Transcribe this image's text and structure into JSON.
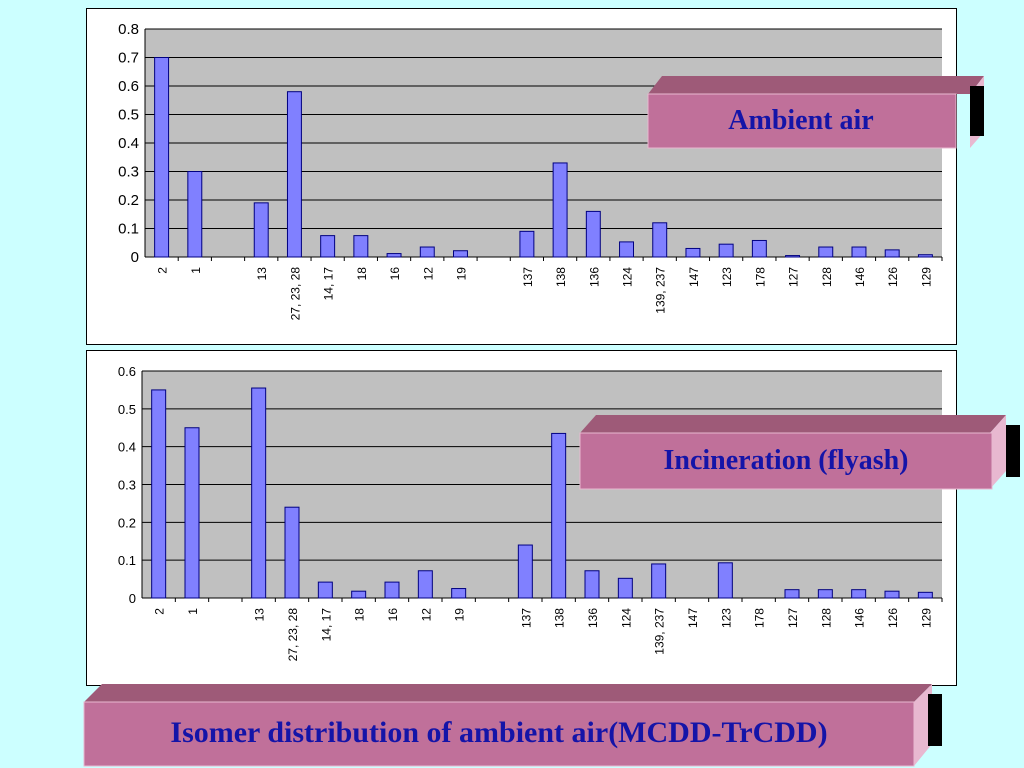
{
  "colors": {
    "background": "#ccffff",
    "plot_area": "#c0c0c0",
    "bar_fill": "#8080ff",
    "bar_stroke": "#000080",
    "label_box_front": "#c0709a",
    "label_box_top": "#9e5a78",
    "label_text": "#1414a8"
  },
  "labels": {
    "ambient": "Ambient air",
    "incineration": "Incineration (flyash)",
    "title": "Isomer distribution of ambient air(MCDD-TrCDD)"
  },
  "chart_data": [
    {
      "type": "bar",
      "categories": [
        "2",
        "1",
        "",
        "13",
        "27, 23, 28",
        "14, 17",
        "18",
        "16",
        "12",
        "19",
        "",
        "137",
        "138",
        "136",
        "124",
        "139, 237",
        "147",
        "123",
        "178",
        "127",
        "128",
        "146",
        "126",
        "129"
      ],
      "values": [
        0.7,
        0.3,
        null,
        0.19,
        0.58,
        0.075,
        0.075,
        0.012,
        0.035,
        0.022,
        null,
        0.09,
        0.33,
        0.16,
        0.053,
        0.12,
        0.03,
        0.045,
        0.058,
        0.005,
        0.035,
        0.035,
        0.025,
        0.008
      ],
      "ylim": [
        0,
        0.8
      ],
      "yticks": [
        "0",
        "0.1",
        "0.2",
        "0.3",
        "0.4",
        "0.5",
        "0.6",
        "0.7",
        "0.8"
      ],
      "grid": true,
      "legend": "none"
    },
    {
      "type": "bar",
      "categories": [
        "2",
        "1",
        "",
        "13",
        "27, 23, 28",
        "14, 17",
        "18",
        "16",
        "12",
        "19",
        "",
        "137",
        "138",
        "136",
        "124",
        "139, 237",
        "147",
        "123",
        "178",
        "127",
        "128",
        "146",
        "126",
        "129"
      ],
      "values": [
        0.55,
        0.45,
        null,
        0.555,
        0.24,
        0.042,
        0.018,
        0.042,
        0.072,
        0.025,
        null,
        0.14,
        0.435,
        0.072,
        0.052,
        0.09,
        0,
        0.093,
        0,
        0.022,
        0.022,
        0.022,
        0.018,
        0.015
      ],
      "ylim": [
        0,
        0.6
      ],
      "yticks": [
        "0",
        "0.1",
        "0.2",
        "0.3",
        "0.4",
        "0.5",
        "0.6"
      ],
      "grid": true,
      "legend": "none"
    }
  ]
}
